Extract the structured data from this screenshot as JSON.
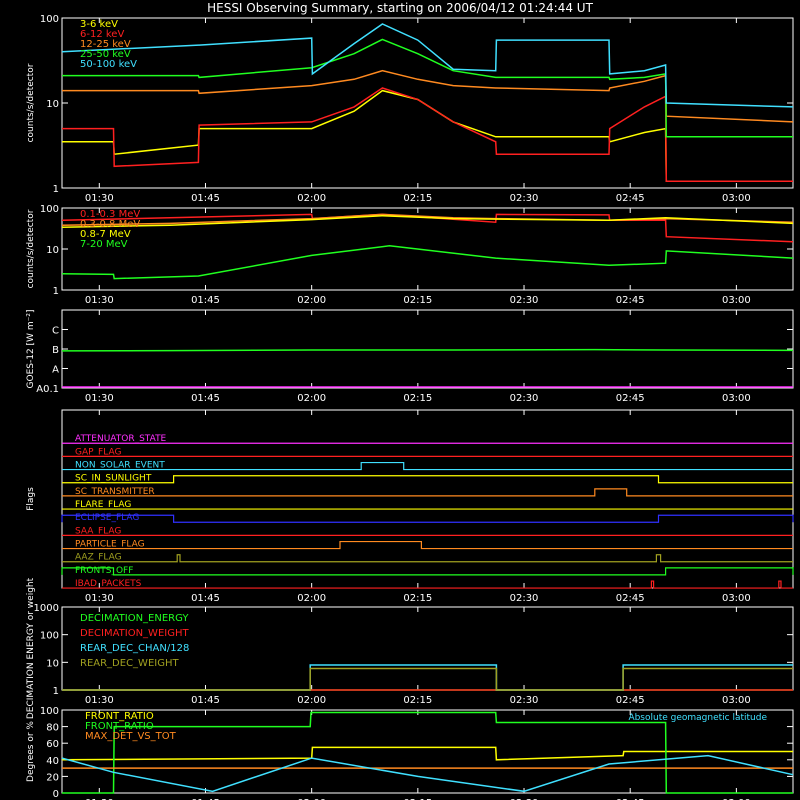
{
  "title": "HESSI Observing Summary, starting on 2006/04/12 01:24:44 UT",
  "time_ticks": [
    "01:30",
    "01:45",
    "02:00",
    "02:15",
    "02:30",
    "02:45",
    "03:00"
  ],
  "time_tick_minutes": [
    90,
    105,
    120,
    135,
    150,
    165,
    180
  ],
  "time_range_minutes": [
    84.73,
    188
  ],
  "colors": {
    "yellow": "#ffff00",
    "red": "#ff2020",
    "orange": "#ff8a20",
    "green": "#20ff20",
    "cyan": "#40e0ff",
    "magenta": "#ff30ff",
    "blue": "#3030ff",
    "olive": "#a0a020",
    "white": "#ffffff"
  },
  "chart_data": [
    {
      "type": "line",
      "name": "low-energy-rates",
      "ylabel": "counts/s/detector",
      "yscale": "log",
      "ylim": [
        1,
        100
      ],
      "yticks": [
        "1",
        "10",
        "100"
      ],
      "ytick_values": [
        1,
        10,
        100
      ],
      "series": [
        {
          "name": "3-6 keV",
          "color": "#ffff00",
          "x": [
            84.73,
            92,
            92.1,
            104,
            104.1,
            120,
            126,
            130,
            135,
            140,
            146,
            146.1,
            162,
            162.1,
            167,
            170,
            170.1,
            188
          ],
          "y": [
            3.5,
            3.5,
            2.5,
            3.2,
            5,
            5,
            8,
            14,
            11,
            6,
            4,
            4,
            4,
            3.5,
            4.5,
            5,
            1.2,
            1.2
          ]
        },
        {
          "name": "6-12 keV",
          "color": "#ff2020",
          "x": [
            84.73,
            92,
            92.1,
            104,
            104.1,
            120,
            126,
            130,
            135,
            140,
            146,
            146.1,
            162,
            162.1,
            167,
            170,
            170.1,
            188
          ],
          "y": [
            5,
            5,
            1.8,
            2.0,
            5.5,
            6,
            9,
            15,
            11,
            6,
            3.5,
            2.5,
            2.5,
            5,
            9,
            12,
            1.2,
            1.2
          ]
        },
        {
          "name": "12-25 keV",
          "color": "#ff8a20",
          "x": [
            84.73,
            104,
            104.1,
            120,
            126,
            130,
            135,
            140,
            146,
            146.1,
            162,
            162.1,
            167,
            170,
            170.1,
            188
          ],
          "y": [
            14,
            14,
            13,
            16,
            19,
            24,
            19,
            16,
            15,
            15,
            14,
            15,
            18,
            21,
            7,
            6
          ]
        },
        {
          "name": "25-50 keV",
          "color": "#20ff20",
          "x": [
            84.73,
            104,
            104.1,
            120,
            126,
            130,
            135,
            140,
            146,
            146.1,
            162,
            162.1,
            167,
            170,
            170.1,
            188
          ],
          "y": [
            21,
            21,
            20,
            26,
            38,
            56,
            38,
            24,
            20,
            20,
            20,
            19,
            20,
            22,
            4,
            4
          ]
        },
        {
          "name": "50-100 keV",
          "color": "#40e0ff",
          "x": [
            84.73,
            104,
            104.1,
            120,
            120.1,
            126,
            130,
            135,
            140,
            146,
            146.1,
            162,
            162.1,
            167,
            170,
            170.1,
            188
          ],
          "y": [
            40,
            48,
            48,
            58,
            22,
            50,
            85,
            55,
            25,
            24,
            55,
            55,
            22,
            24,
            28,
            10,
            9
          ]
        }
      ]
    },
    {
      "type": "line",
      "name": "high-energy-rates",
      "ylabel": "counts/s/detector",
      "yscale": "log",
      "ylim": [
        1,
        100
      ],
      "yticks": [
        "1",
        "10",
        "100"
      ],
      "ytick_values": [
        1,
        10,
        100
      ],
      "series": [
        {
          "name": "0.1-0.3 MeV",
          "color": "#ff2020",
          "x": [
            84.73,
            120,
            120.1,
            130,
            146,
            146.1,
            162,
            162.1,
            170,
            170.1,
            188
          ],
          "y": [
            50,
            70,
            55,
            70,
            45,
            70,
            68,
            50,
            50,
            20,
            15
          ]
        },
        {
          "name": "0.3-0.8 MeV",
          "color": "#ff8a20",
          "x": [
            84.73,
            100,
            120,
            130,
            140,
            146,
            162,
            170,
            188
          ],
          "y": [
            38,
            42,
            55,
            70,
            58,
            55,
            50,
            55,
            45
          ]
        },
        {
          "name": "0.8-7 MeV",
          "color": "#ffff00",
          "x": [
            84.73,
            100,
            120,
            130,
            140,
            162,
            170,
            188
          ],
          "y": [
            34,
            38,
            52,
            65,
            55,
            50,
            58,
            42
          ]
        },
        {
          "name": "7-20 MeV",
          "color": "#20ff20",
          "x": [
            84.73,
            92,
            92.1,
            104,
            120,
            131,
            146,
            162,
            170,
            170.1,
            188
          ],
          "y": [
            2.5,
            2.4,
            1.9,
            2.2,
            7,
            12,
            6,
            4,
            4.5,
            9,
            6
          ]
        }
      ]
    },
    {
      "type": "line",
      "name": "goes-flux",
      "ylabel": "GOES-12 [W m⁻²]",
      "ylim": [
        0,
        4
      ],
      "yticks": [
        "A0.1",
        "A",
        "B",
        "C"
      ],
      "ytick_values": [
        0,
        1,
        2,
        3
      ],
      "series": [
        {
          "name": "GOES long",
          "color": "#20ff20",
          "x": [
            84.73,
            100,
            120,
            140,
            160,
            170,
            188
          ],
          "y": [
            1.9,
            1.92,
            1.95,
            1.95,
            1.97,
            1.95,
            1.93
          ]
        },
        {
          "name": "GOES short",
          "color": "#ff30ff",
          "x": [
            84.73,
            188
          ],
          "y": [
            0.05,
            0.05
          ]
        }
      ]
    },
    {
      "type": "line",
      "name": "flags",
      "ylabel": "Flags",
      "flags": [
        {
          "name": "ATTENUATOR_STATE",
          "color": "#ff30ff",
          "steps": []
        },
        {
          "name": "GAP_FLAG",
          "color": "#ff2020",
          "steps": []
        },
        {
          "name": "NON_SOLAR_EVENT",
          "color": "#40e0ff",
          "steps": [
            [
              127,
              133
            ]
          ]
        },
        {
          "name": "SC_IN_SUNLIGHT",
          "color": "#ffff00",
          "steps": [
            [
              100.5,
              169
            ]
          ]
        },
        {
          "name": "SC_TRANSMITTER",
          "color": "#ff8a20",
          "steps": [
            [
              160,
              164.5
            ]
          ]
        },
        {
          "name": "FLARE_FLAG",
          "color": "#ffff00",
          "steps": []
        },
        {
          "name": "ECLIPSE_FLAG",
          "color": "#3030ff",
          "steps": [
            [
              84.73,
              100.5
            ],
            [
              169,
              188
            ]
          ]
        },
        {
          "name": "SAA_FLAG",
          "color": "#ff2020",
          "steps": []
        },
        {
          "name": "PARTICLE_FLAG",
          "color": "#ff8a20",
          "steps": [
            [
              124,
              135.5
            ]
          ]
        },
        {
          "name": "AAZ_FLAG",
          "color": "#a0a020",
          "steps": [
            [
              101,
              101.4
            ],
            [
              168.7,
              169.3
            ]
          ]
        },
        {
          "name": "FRONTS_OFF",
          "color": "#20ff20",
          "steps": [
            [
              84.73,
              92
            ],
            [
              170,
              188
            ]
          ]
        },
        {
          "name": "IBAD_PACKETS",
          "color": "#ff2020",
          "steps": [
            [
              168,
              168.3
            ],
            [
              186,
              186.3
            ]
          ]
        }
      ]
    },
    {
      "type": "line",
      "name": "decimation",
      "ylabel": "DECIMATION ENERGY or weight",
      "yscale": "log",
      "ylim": [
        1,
        1000
      ],
      "yticks": [
        "1",
        "10",
        "100",
        "1000"
      ],
      "ytick_values": [
        1,
        10,
        100,
        1000
      ],
      "series": [
        {
          "name": "DECIMATION_ENERGY",
          "color": "#20ff20",
          "x": [
            84.73,
            188
          ],
          "y": [
            1,
            1
          ]
        },
        {
          "name": "DECIMATION_WEIGHT",
          "color": "#ff2020",
          "x": [
            84.73,
            188
          ],
          "y": [
            1,
            1
          ]
        },
        {
          "name": "REAR_DEC_CHAN/128",
          "color": "#40e0ff",
          "x": [
            84.73,
            119.8,
            119.8,
            146.1,
            146.1,
            164,
            164,
            188
          ],
          "y": [
            1,
            1,
            8,
            8,
            1,
            1,
            8,
            8
          ]
        },
        {
          "name": "REAR_DEC_WEIGHT",
          "color": "#a0a020",
          "x": [
            84.73,
            119.8,
            119.8,
            146.1,
            146.1,
            164,
            164,
            188
          ],
          "y": [
            1,
            1,
            6,
            6,
            1,
            1,
            6,
            6
          ]
        }
      ]
    },
    {
      "type": "line",
      "name": "ratios",
      "ylabel": "Degrees or %",
      "ylim": [
        0,
        100
      ],
      "yticks": [
        "0",
        "20",
        "40",
        "60",
        "80",
        "100"
      ],
      "ytick_values": [
        0,
        20,
        40,
        60,
        80,
        100
      ],
      "annotation": "Absolute geomagnetic latitude",
      "series": [
        {
          "name": "FRONT_RATIO",
          "color": "#ffff00",
          "x": [
            84.73,
            120,
            120.1,
            146,
            146.1,
            164,
            164.1,
            188
          ],
          "y": [
            40,
            42,
            55,
            55,
            40,
            45,
            50,
            50
          ]
        },
        {
          "name": "FRONT_RATIO",
          "color": "#20ff20",
          "x": [
            84.73,
            92,
            92.1,
            119.8,
            119.9,
            146,
            146.1,
            170,
            170.1,
            188
          ],
          "y": [
            0,
            0,
            80,
            80,
            97,
            97,
            85,
            85,
            0,
            0
          ]
        },
        {
          "name": "MAX_DET_VS_TOT",
          "color": "#ff8a20",
          "x": [
            84.73,
            188
          ],
          "y": [
            30,
            30
          ]
        },
        {
          "name": "Absolute geomagnetic latitude",
          "color": "#40e0ff",
          "x": [
            84.73,
            92,
            106,
            120,
            135,
            150,
            162,
            176,
            188
          ],
          "y": [
            42,
            25,
            2,
            42,
            20,
            2,
            35,
            45,
            22
          ]
        }
      ]
    }
  ]
}
